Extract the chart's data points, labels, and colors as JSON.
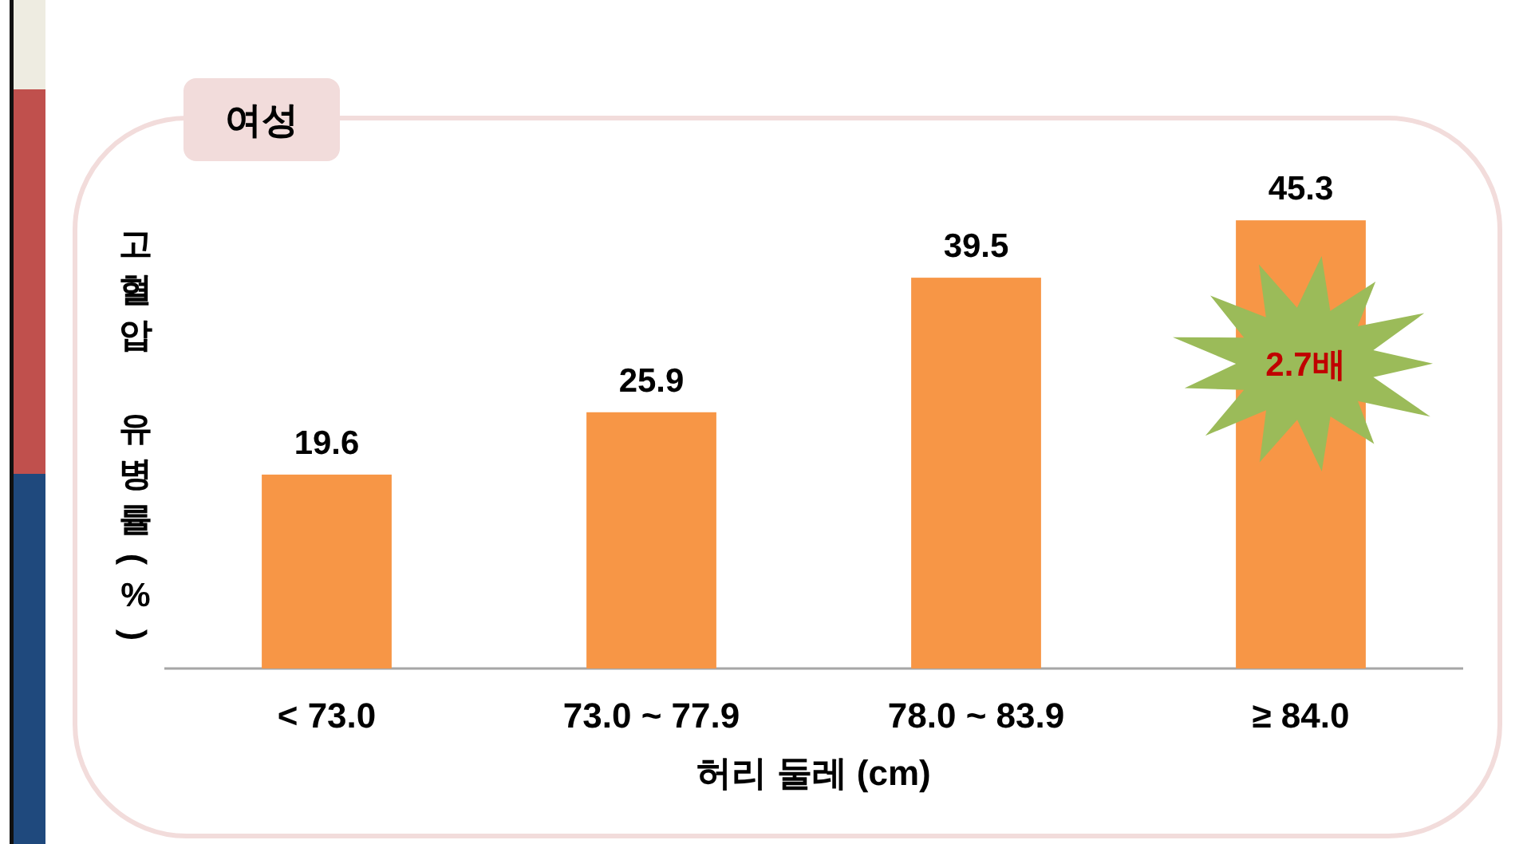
{
  "chart_data": {
    "type": "bar",
    "title": "여성",
    "xlabel": "허리 둘레 (cm)",
    "ylabel": "고혈압 유병률(%)",
    "categories": [
      "< 73.0",
      "73.0 ~ 77.9",
      "78.0 ~ 83.9",
      "≥ 84.0"
    ],
    "values": [
      19.6,
      25.9,
      39.5,
      45.3
    ],
    "color": "#f79646",
    "data_labels": true,
    "annotations": [
      "2.7배"
    ]
  }
}
